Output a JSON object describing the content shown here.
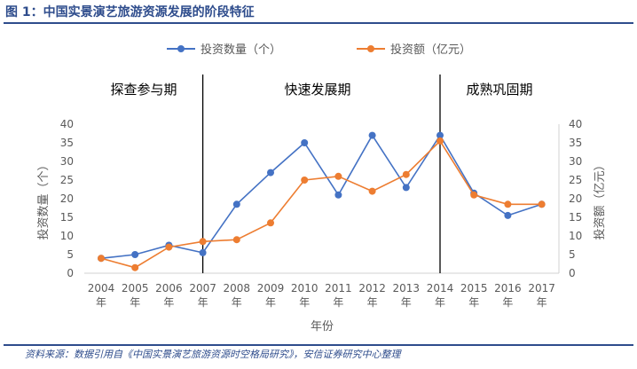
{
  "figure": {
    "title": "图 1：中国实景演艺旅游资源发展的阶段特征",
    "source": "资料来源：数据引用自《中国实景演艺旅游资源时空格局研究》，安信证券研究中心整理"
  },
  "chart_data": {
    "type": "line",
    "title": "",
    "categories": [
      "2004",
      "2005",
      "2006",
      "2007",
      "2008",
      "2009",
      "2010",
      "2011",
      "2012",
      "2013",
      "2014",
      "2015",
      "2016",
      "2017"
    ],
    "tick_suffix": "年",
    "xlabel": "年份",
    "ylabel": "投资数量（个）",
    "y2label": "投资额（亿元）",
    "ylim": [
      0,
      40
    ],
    "y2lim": [
      0,
      40
    ],
    "yticks": [
      0,
      5,
      10,
      15,
      20,
      25,
      30,
      35,
      40
    ],
    "y2ticks": [
      0,
      5,
      10,
      15,
      20,
      25,
      30,
      35,
      40
    ],
    "grid": false,
    "legend_position": "top",
    "series": [
      {
        "name": "投资数量（个）",
        "axis": "left",
        "color": "#4472C4",
        "values": [
          4,
          5,
          7.5,
          5.5,
          18.5,
          27,
          35,
          21,
          37,
          23,
          37,
          21.5,
          15.5,
          18.5
        ]
      },
      {
        "name": "投资额（亿元）",
        "axis": "right",
        "color": "#ED7D31",
        "values": [
          4,
          1.5,
          7,
          8.5,
          9,
          13.5,
          25,
          26,
          22,
          26.5,
          35.5,
          21,
          18.5,
          18.5
        ]
      }
    ],
    "phase_dividers": [
      "2007",
      "2014"
    ],
    "phases": [
      {
        "label": "探查参与期",
        "from": "2004",
        "to": "2007"
      },
      {
        "label": "快速发展期",
        "from": "2007",
        "to": "2014"
      },
      {
        "label": "成熟巩固期",
        "from": "2014",
        "to": "2017"
      }
    ]
  }
}
